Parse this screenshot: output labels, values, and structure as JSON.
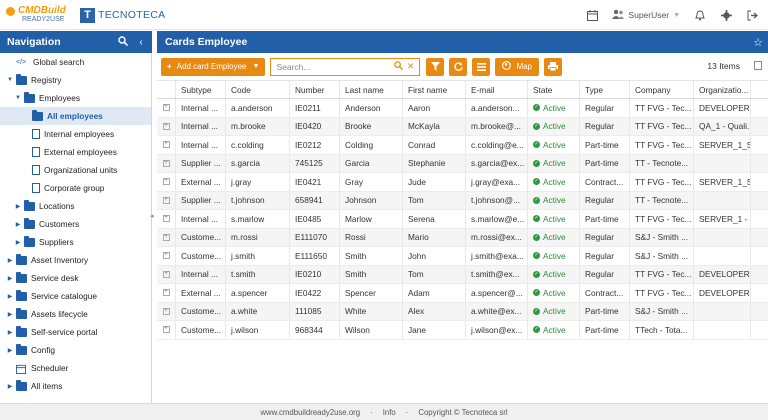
{
  "header": {
    "logo_cmdbuild": "CMDBuild",
    "logo_ready": "READY2USE",
    "logo_tecnoteca_mark": "T",
    "logo_tecnoteca": "TECNOTECA",
    "user_name": "SuperUser",
    "icons": [
      "calendar-icon",
      "user-icon",
      "bell-icon",
      "gear-icon",
      "logout-icon"
    ]
  },
  "sidebar": {
    "title": "Navigation",
    "items": [
      {
        "label": "Global search",
        "icon": "code-icon",
        "level": 0,
        "toggle": ""
      },
      {
        "label": "Registry",
        "icon": "folder-icon",
        "level": 0,
        "toggle": "down"
      },
      {
        "label": "Employees",
        "icon": "folder-icon",
        "level": 1,
        "toggle": "down"
      },
      {
        "label": "All employees",
        "icon": "folder-icon",
        "level": 2,
        "toggle": "",
        "active": true
      },
      {
        "label": "Internal employees",
        "icon": "doc-icon",
        "level": 2,
        "toggle": ""
      },
      {
        "label": "External employees",
        "icon": "doc-icon",
        "level": 2,
        "toggle": ""
      },
      {
        "label": "Organizational units",
        "icon": "doc-icon",
        "level": 2,
        "toggle": ""
      },
      {
        "label": "Corporate group",
        "icon": "doc-icon",
        "level": 2,
        "toggle": ""
      },
      {
        "label": "Locations",
        "icon": "folder-icon",
        "level": 1,
        "toggle": "right"
      },
      {
        "label": "Customers",
        "icon": "folder-icon",
        "level": 1,
        "toggle": "right"
      },
      {
        "label": "Suppliers",
        "icon": "folder-icon",
        "level": 1,
        "toggle": "right"
      },
      {
        "label": "Asset Inventory",
        "icon": "folder-icon",
        "level": 0,
        "toggle": "right"
      },
      {
        "label": "Service desk",
        "icon": "folder-icon",
        "level": 0,
        "toggle": "right"
      },
      {
        "label": "Service catalogue",
        "icon": "folder-icon",
        "level": 0,
        "toggle": "right"
      },
      {
        "label": "Assets lifecycle",
        "icon": "folder-icon",
        "level": 0,
        "toggle": "right"
      },
      {
        "label": "Self-service portal",
        "icon": "folder-icon",
        "level": 0,
        "toggle": "right"
      },
      {
        "label": "Config",
        "icon": "folder-icon",
        "level": 0,
        "toggle": "right"
      },
      {
        "label": "Scheduler",
        "icon": "calendar-icon",
        "level": 0,
        "toggle": ""
      },
      {
        "label": "All items",
        "icon": "folder-icon",
        "level": 0,
        "toggle": "right"
      }
    ]
  },
  "main": {
    "title": "Cards Employee",
    "add_label": "Add card Employee",
    "search_placeholder": "Search...",
    "map_label": "Map",
    "items_count": "13 Items",
    "columns": [
      "Subtype",
      "Code",
      "Number",
      "Last name",
      "First name",
      "E-mail",
      "State",
      "Type",
      "Company",
      "Organizatio..."
    ],
    "rows": [
      [
        "Internal ...",
        "a.anderson",
        "IE0211",
        "Anderson",
        "Aaron",
        "a.anderson...",
        "Active",
        "Regular",
        "TT FVG - Tec...",
        "DEVELOPER..."
      ],
      [
        "Internal ...",
        "m.brooke",
        "IE0420",
        "Brooke",
        "McKayla",
        "m.brooke@...",
        "Active",
        "Regular",
        "TT FVG - Tec...",
        "QA_1 - Quali..."
      ],
      [
        "Internal ...",
        "c.colding",
        "IE0212",
        "Colding",
        "Conrad",
        "c.colding@e...",
        "Active",
        "Part-time",
        "TT FVG - Tec...",
        "SERVER_1_S..."
      ],
      [
        "Supplier ...",
        "s.garcia",
        "745125",
        "Garcia",
        "Stephanie",
        "s.garcia@ex...",
        "Active",
        "Part-time",
        "TT - Tecnote...",
        ""
      ],
      [
        "External ...",
        "j.gray",
        "IE0421",
        "Gray",
        "Jude",
        "j.gray@exa...",
        "Active",
        "Contract...",
        "TT FVG - Tec...",
        "SERVER_1_S..."
      ],
      [
        "Supplier ...",
        "t.johnson",
        "658941",
        "Johnson",
        "Tom",
        "t.johnson@...",
        "Active",
        "Regular",
        "TT - Tecnote...",
        ""
      ],
      [
        "Internal ...",
        "s.marlow",
        "IE0485",
        "Marlow",
        "Serena",
        "s.marlow@e...",
        "Active",
        "Part-time",
        "TT FVG - Tec...",
        "SERVER_1 - ..."
      ],
      [
        "Custome...",
        "m.rossi",
        "E111070",
        "Rossi",
        "Mario",
        "m.rossi@ex...",
        "Active",
        "Regular",
        "S&J - Smith ...",
        ""
      ],
      [
        "Custome...",
        "j.smith",
        "E111650",
        "Smith",
        "John",
        "j.smith@exa...",
        "Active",
        "Regular",
        "S&J - Smith ...",
        ""
      ],
      [
        "Internal ...",
        "t.smith",
        "IE0210",
        "Smith",
        "Tom",
        "t.smith@ex...",
        "Active",
        "Regular",
        "TT FVG - Tec...",
        "DEVELOPER..."
      ],
      [
        "External ...",
        "a.spencer",
        "IE0422",
        "Spencer",
        "Adam",
        "a.spencer@...",
        "Active",
        "Contract...",
        "TT FVG - Tec...",
        "DEVELOPER..."
      ],
      [
        "Custome...",
        "a.white",
        "111085",
        "White",
        "Alex",
        "a.white@ex...",
        "Active",
        "Part-time",
        "S&J - Smith ...",
        ""
      ],
      [
        "Custome...",
        "j.wilson",
        "968344",
        "Wilson",
        "Jane",
        "j.wilson@ex...",
        "Active",
        "Part-time",
        "TTech - Tota...",
        ""
      ]
    ]
  },
  "footer": {
    "site": "www.cmdbuildready2use.org",
    "info": "Info",
    "copyright": "Copyright © Tecnoteca srl"
  },
  "colors": {
    "primary": "#2160a8",
    "accent": "#e88a12",
    "status_active": "#2e9a3e"
  }
}
